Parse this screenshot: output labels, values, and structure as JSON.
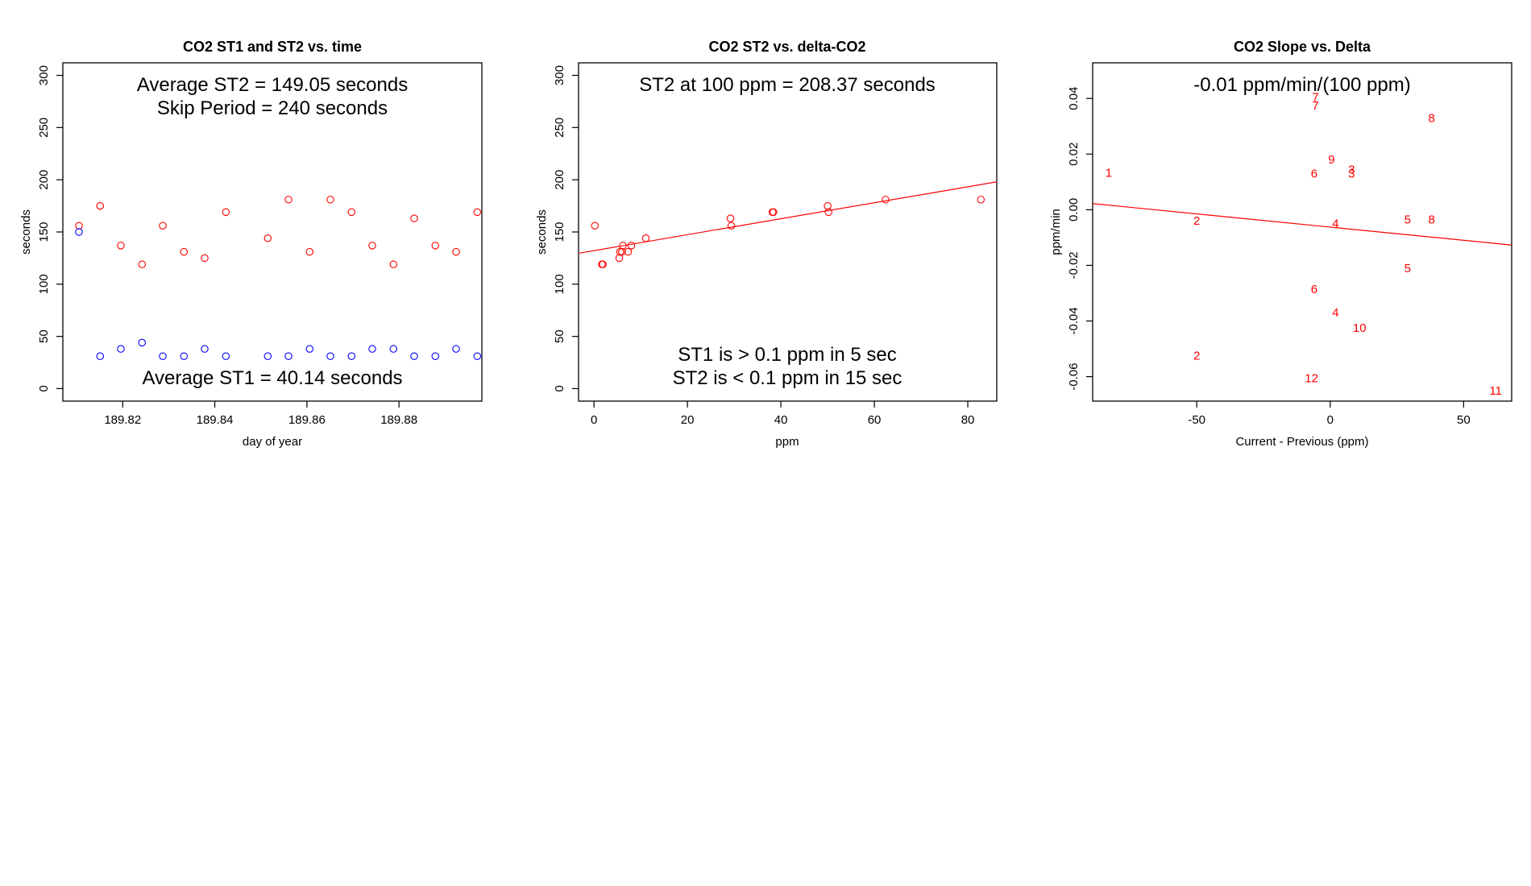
{
  "colors": {
    "red": "#ff0000",
    "blue": "#0000ff",
    "axis": "#000000"
  },
  "chart_data": [
    {
      "type": "scatter",
      "title": "CO2 ST1 and ST2 vs. time",
      "xlabel": "day of year",
      "ylabel": "seconds",
      "xlim": [
        189.807,
        189.898
      ],
      "ylim": [
        -12,
        312
      ],
      "x_ticks": [
        189.82,
        189.84,
        189.86,
        189.88
      ],
      "x_tick_labels": [
        "189.82",
        "189.84",
        "189.86",
        "189.88"
      ],
      "y_ticks": [
        0,
        50,
        100,
        150,
        200,
        250,
        300
      ],
      "y_tick_labels": [
        "0",
        "50",
        "100",
        "150",
        "200",
        "250",
        "300"
      ],
      "annotations": [
        "Average ST2 =  149.05  seconds",
        "Skip Period =  240  seconds",
        "Average ST1 =  40.14  seconds"
      ],
      "series": [
        {
          "color": "#ff0000",
          "x": [
            189.8105,
            189.8151,
            189.8196,
            189.8242,
            189.8287,
            189.8333,
            189.8378,
            189.8424,
            189.8515,
            189.856,
            189.8606,
            189.8651,
            189.8697,
            189.8742,
            189.8788,
            189.8833,
            189.8879,
            189.8924,
            189.897
          ],
          "values": [
            156,
            175,
            137,
            119,
            156,
            131,
            125,
            169,
            144,
            181,
            131,
            181,
            169,
            137,
            119,
            163,
            137,
            131,
            169
          ]
        },
        {
          "color": "#0000ff",
          "x": [
            189.8105,
            189.8151,
            189.8196,
            189.8242,
            189.8287,
            189.8333,
            189.8378,
            189.8424,
            189.8515,
            189.856,
            189.8606,
            189.8651,
            189.8697,
            189.8742,
            189.8788,
            189.8833,
            189.8879,
            189.8924,
            189.897
          ],
          "values": [
            150,
            31,
            38,
            44,
            31,
            31,
            38,
            31,
            31,
            31,
            38,
            31,
            31,
            38,
            38,
            31,
            31,
            38,
            31
          ]
        }
      ]
    },
    {
      "type": "scatter",
      "title": "CO2 ST2 vs. delta-CO2",
      "xlabel": "ppm",
      "ylabel": "seconds",
      "xlim": [
        -3.3,
        86.2
      ],
      "ylim": [
        -12,
        312
      ],
      "x_ticks": [
        0,
        20,
        40,
        60,
        80
      ],
      "x_tick_labels": [
        "0",
        "20",
        "40",
        "60",
        "80"
      ],
      "y_ticks": [
        0,
        50,
        100,
        150,
        200,
        250,
        300
      ],
      "y_tick_labels": [
        "0",
        "50",
        "100",
        "150",
        "200",
        "250",
        "300"
      ],
      "annotations": [
        "ST2 at 100 ppm =  208.37  seconds",
        "ST1 is > 0.1 ppm in 5 sec",
        "ST2 is < 0.1 ppm in 15 sec"
      ],
      "series": [
        {
          "color": "#ff0000",
          "x": [
            0.2,
            1.7,
            1.9,
            5.4,
            5.6,
            6.0,
            6.2,
            7.3,
            8.0,
            11.1,
            29.2,
            29.4,
            38.2,
            38.4,
            50.0,
            50.2,
            62.4,
            82.8
          ],
          "values": [
            156,
            119,
            119,
            125,
            131,
            131,
            137,
            131,
            137,
            144,
            163,
            156,
            169,
            169,
            175,
            169,
            181,
            181
          ]
        }
      ],
      "fit_line": {
        "color": "#ff0000",
        "x": [
          -3.3,
          86.2
        ],
        "y": [
          129.6,
          198.0
        ]
      }
    },
    {
      "type": "scatter",
      "title": "CO2 Slope vs. Delta",
      "xlabel": "Current - Previous (ppm)",
      "ylabel": "ppm/min",
      "xlim": [
        -89,
        68
      ],
      "ylim": [
        -0.0688,
        0.0528
      ],
      "x_ticks": [
        -50,
        0,
        50
      ],
      "x_tick_labels": [
        "-50",
        "0",
        "50"
      ],
      "y_ticks": [
        -0.06,
        -0.04,
        -0.02,
        0.0,
        0.02,
        0.04
      ],
      "y_tick_labels": [
        "-0.06",
        "-0.04",
        "-0.02",
        "0.00",
        "0.02",
        "0.04"
      ],
      "annotations": [
        "-0.01  ppm/min/(100 ppm)"
      ],
      "series": [
        {
          "color": "#ff0000",
          "x": [
            -83,
            -50,
            -50,
            -5.5,
            -5.5,
            -6,
            -6,
            0.5,
            8,
            8,
            2,
            2,
            -7,
            11,
            29,
            29,
            38,
            38,
            62
          ],
          "y": [
            0.0133,
            -0.004,
            -0.0525,
            0.0405,
            0.0375,
            0.013,
            -0.0285,
            0.018,
            0.0145,
            0.013,
            -0.005,
            -0.037,
            -0.0605,
            -0.0425,
            -0.0035,
            -0.021,
            0.033,
            -0.0035,
            -0.065
          ],
          "labels": [
            "1",
            "2",
            "2",
            "7",
            "7",
            "6",
            "6",
            "9",
            "3",
            "3",
            "4",
            "4",
            "12",
            "10",
            "5",
            "5",
            "8",
            "8",
            "11"
          ]
        }
      ],
      "fit_line": {
        "color": "#ff0000",
        "x": [
          -89,
          68
        ],
        "y": [
          0.0022,
          -0.0127
        ]
      }
    }
  ]
}
